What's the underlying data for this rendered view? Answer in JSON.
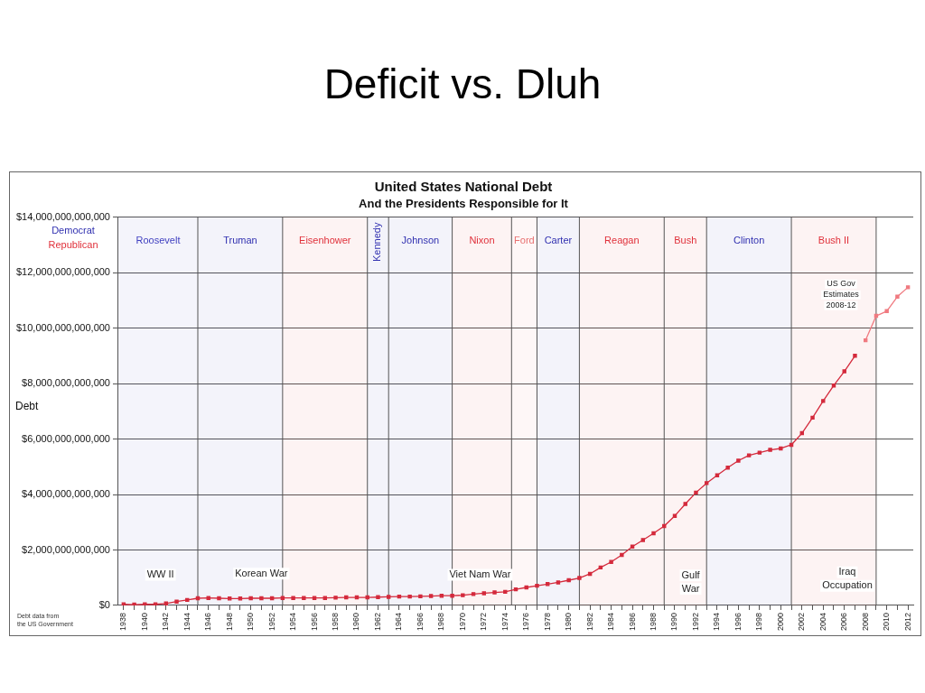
{
  "chart_data": {
    "type": "line",
    "title": "United States National Debt",
    "subtitle": "And the Presidents Responsible for It",
    "ylabel": "Debt",
    "xlim": [
      1937.5,
      2012.5
    ],
    "xticks": [
      1938,
      {
        "value": 1939,
        "label": null
      },
      1940,
      {
        "value": 1941,
        "label": null
      },
      1942,
      {
        "value": 1943,
        "label": null
      },
      1944,
      {
        "value": 1945,
        "label": null
      },
      1946,
      {
        "value": 1947,
        "label": null
      },
      1948,
      {
        "value": 1949,
        "label": null
      },
      1950,
      {
        "value": 1951,
        "label": null
      },
      1952,
      {
        "value": 1953,
        "label": null
      },
      1954,
      {
        "value": 1955,
        "label": null
      },
      1956,
      {
        "value": 1957,
        "label": null
      },
      1958,
      {
        "value": 1959,
        "label": null
      },
      1960,
      {
        "value": 1961,
        "label": null
      },
      1962,
      {
        "value": 1963,
        "label": null
      },
      1964,
      {
        "value": 1965,
        "label": null
      },
      1966,
      {
        "value": 1967,
        "label": null
      },
      1968,
      {
        "value": 1969,
        "label": null
      },
      1970,
      {
        "value": 1971,
        "label": null
      },
      1972,
      {
        "value": 1973,
        "label": null
      },
      1974,
      {
        "value": 1975,
        "label": null
      },
      1976,
      {
        "value": 1977,
        "label": null
      },
      1978,
      {
        "value": 1979,
        "label": null
      },
      1980,
      {
        "value": 1981,
        "label": null
      },
      1982,
      {
        "value": 1983,
        "label": null
      },
      1984,
      {
        "value": 1985,
        "label": null
      },
      1986,
      {
        "value": 1987,
        "label": null
      },
      1988,
      {
        "value": 1989,
        "label": null
      },
      1990,
      {
        "value": 1991,
        "label": null
      },
      1992,
      {
        "value": 1993,
        "label": null
      },
      1994,
      {
        "value": 1995,
        "label": null
      },
      1996,
      {
        "value": 1997,
        "label": null
      },
      1998,
      {
        "value": 1999,
        "label": null
      },
      2000,
      {
        "value": 2001,
        "label": null
      },
      2002,
      {
        "value": 2003,
        "label": null
      },
      2004,
      {
        "value": 2005,
        "label": null
      },
      2006,
      {
        "value": 2007,
        "label": null
      },
      2008,
      {
        "value": 2009,
        "label": null
      },
      2010,
      {
        "value": 2011,
        "label": null
      },
      2012
    ],
    "ylim": [
      0,
      14000000000000
    ],
    "yticks": [
      {
        "value": 0,
        "label": "$0"
      },
      {
        "value": 2000000000000,
        "label": "$2,000,000,000,000"
      },
      {
        "value": 4000000000000,
        "label": "$4,000,000,000,000"
      },
      {
        "value": 6000000000000,
        "label": "$6,000,000,000,000"
      },
      {
        "value": 8000000000000,
        "label": "$8,000,000,000,000"
      },
      {
        "value": 10000000000000,
        "label": "$10,000,000,000,000"
      },
      {
        "value": 12000000000000,
        "label": "$12,000,000,000,000"
      },
      {
        "value": 14000000000000,
        "label": "$14,000,000,000,000"
      }
    ],
    "grid": "y",
    "marker": "square",
    "line_style": "solid",
    "legend": false,
    "series": [
      {
        "color": "#d42a3c",
        "x": [
          1938,
          1939,
          1940,
          1941,
          1942,
          1943,
          1944,
          1945,
          1946,
          1947,
          1948,
          1949,
          1950,
          1951,
          1952,
          1953,
          1954,
          1955,
          1956,
          1957,
          1958,
          1959,
          1960,
          1961,
          1962,
          1963,
          1964,
          1965,
          1966,
          1967,
          1968,
          1969,
          1970,
          1971,
          1972,
          1973,
          1974,
          1975,
          1976,
          1977,
          1978,
          1979,
          1980,
          1981,
          1982,
          1983,
          1984,
          1985,
          1986,
          1987,
          1988,
          1989,
          1990,
          1991,
          1992,
          1993,
          1994,
          1995,
          1996,
          1997,
          1998,
          1999,
          2000,
          2001,
          2002,
          2003,
          2004,
          2005,
          2006,
          2007
        ],
        "values": [
          40000000000.0,
          30000000000.0,
          40000000000.0,
          40000000000.0,
          70000000000.0,
          140000000000.0,
          200000000000.0,
          260000000000.0,
          270000000000.0,
          260000000000.0,
          250000000000.0,
          250000000000.0,
          260000000000.0,
          260000000000.0,
          260000000000.0,
          270000000000.0,
          270000000000.0,
          270000000000.0,
          270000000000.0,
          270000000000.0,
          280000000000.0,
          290000000000.0,
          290000000000.0,
          290000000000.0,
          300000000000.0,
          310000000000.0,
          320000000000.0,
          320000000000.0,
          330000000000.0,
          340000000000.0,
          350000000000.0,
          350000000000.0,
          370000000000.0,
          410000000000.0,
          440000000000.0,
          470000000000.0,
          490000000000.0,
          580000000000.0,
          650000000000.0,
          710000000000.0,
          770000000000.0,
          830000000000.0,
          910000000000.0,
          990000000000.0,
          1140000000000.0,
          1370000000000.0,
          1570000000000.0,
          1820000000000.0,
          2120000000000.0,
          2360000000000.0,
          2600000000000.0,
          2860000000000.0,
          3230000000000.0,
          3660000000000.0,
          4070000000000.0,
          4410000000000.0,
          4690000000000.0,
          4970000000000.0,
          5220000000000.0,
          5410000000000.0,
          5510000000000.0,
          5610000000000.0,
          5660000000000.0,
          5790000000000.0,
          6210000000000.0,
          6770000000000.0,
          7370000000000.0,
          7930000000000.0,
          8440000000000.0,
          9000000000000.0
        ]
      },
      {
        "color": "#f07a80",
        "x": [
          2008,
          2009,
          2010,
          2011,
          2012
        ],
        "values": [
          9560000000000.0,
          10440000000000.0,
          10610000000000.0,
          11130000000000.0,
          11470000000000.0
        ]
      }
    ],
    "ref_lines": [
      {
        "axis": "x",
        "value": 1945
      },
      {
        "axis": "x",
        "value": 1953
      },
      {
        "axis": "x",
        "value": 1961
      },
      {
        "axis": "x",
        "value": 1963
      },
      {
        "axis": "x",
        "value": 1969
      },
      {
        "axis": "x",
        "value": 1974.6
      },
      {
        "axis": "x",
        "value": 1977
      },
      {
        "axis": "x",
        "value": 1981
      },
      {
        "axis": "x",
        "value": 1989
      },
      {
        "axis": "x",
        "value": 1993
      },
      {
        "axis": "x",
        "value": 2001
      },
      {
        "axis": "x",
        "value": 2009
      }
    ],
    "bands": [
      {
        "axis": "x",
        "from": 1937.5,
        "to": 1945,
        "label": "Roosevelt",
        "color": "#4040c0"
      },
      {
        "axis": "x",
        "from": 1945,
        "to": 1953,
        "label": "Truman",
        "color": "#3030b0"
      },
      {
        "axis": "x",
        "from": 1953,
        "to": 1961,
        "label": "Eisenhower",
        "color": "#e0303a"
      },
      {
        "axis": "x",
        "from": 1961,
        "to": 1963,
        "label": "Kennedy",
        "color": "#3030b0"
      },
      {
        "axis": "x",
        "from": 1963,
        "to": 1969,
        "label": "Johnson",
        "color": "#3030b0"
      },
      {
        "axis": "x",
        "from": 1969,
        "to": 1974.6,
        "label": "Nixon",
        "color": "#e0303a"
      },
      {
        "axis": "x",
        "from": 1974.6,
        "to": 1977,
        "label": "Ford",
        "color": "#e87070"
      },
      {
        "axis": "x",
        "from": 1977,
        "to": 1981,
        "label": "Carter",
        "color": "#3030b0"
      },
      {
        "axis": "x",
        "from": 1981,
        "to": 1989,
        "label": "Reagan",
        "color": "#e0303a"
      },
      {
        "axis": "x",
        "from": 1989,
        "to": 1993,
        "label": "Bush",
        "color": "#e0303a"
      },
      {
        "axis": "x",
        "from": 1993,
        "to": 2001,
        "label": "Clinton",
        "color": "#3030b0"
      },
      {
        "axis": "x",
        "from": 2001,
        "to": 2009,
        "label": "Bush II",
        "color": "#e0303a"
      }
    ],
    "annotations": [
      "Deficit vs. Dluh",
      "Democrat",
      "Republican",
      "Debt data from the US Government",
      "WW II",
      "Korean War",
      "Viet Nam War",
      "Gulf\nWar",
      "Iraq\nOccupation",
      "US Gov\nEstimates\n2008-12"
    ]
  }
}
